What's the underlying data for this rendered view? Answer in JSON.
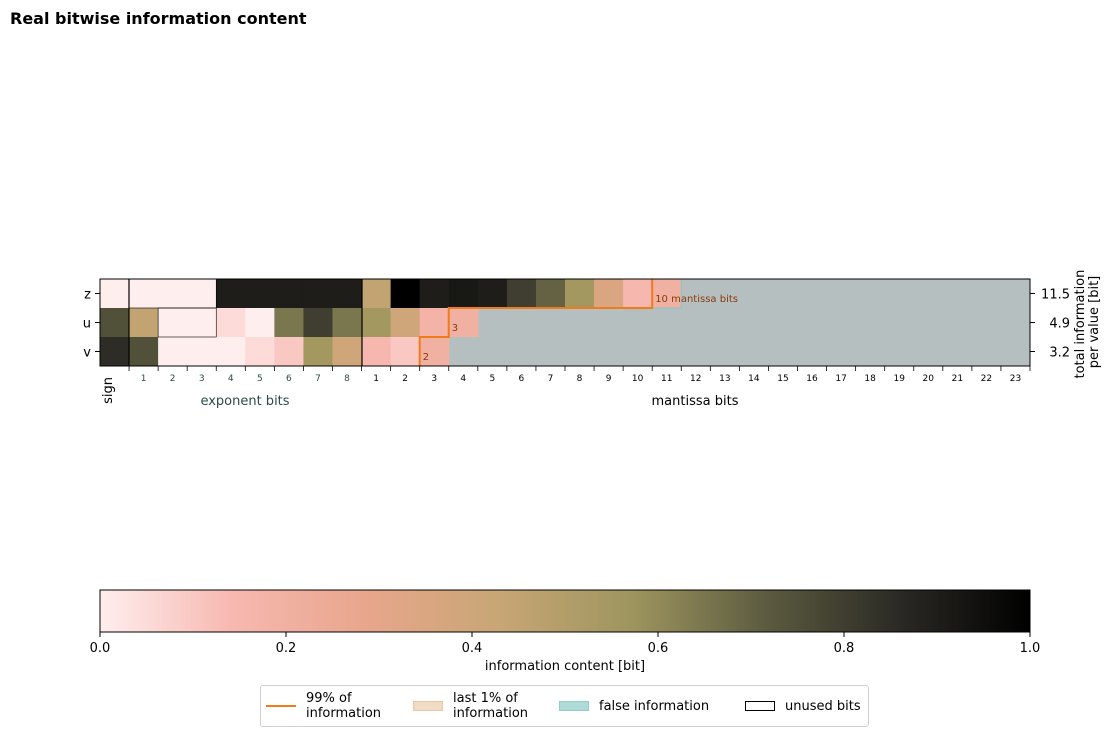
{
  "chart_data": {
    "type": "heatmap",
    "title": "Real bitwise information content",
    "rows": [
      "z",
      "u",
      "v"
    ],
    "row_totals": [
      "11.5",
      "4.9",
      "3.2"
    ],
    "right_label": [
      "total information",
      "per value [bit]"
    ],
    "sign_label": "sign",
    "exponent_label": "exponent bits",
    "mantissa_label": "mantissa bits",
    "exponent_ticks": [
      "1",
      "2",
      "3",
      "4",
      "5",
      "6",
      "7",
      "8"
    ],
    "mantissa_ticks": [
      "1",
      "2",
      "3",
      "4",
      "5",
      "6",
      "7",
      "8",
      "9",
      "10",
      "11",
      "12",
      "13",
      "14",
      "15",
      "16",
      "17",
      "18",
      "19",
      "20",
      "21",
      "22",
      "23"
    ],
    "values": [
      [
        0.0,
        0.0,
        0.0,
        0.0,
        0.9,
        0.9,
        0.9,
        0.9,
        0.9,
        0.45,
        1.0,
        0.9,
        0.92,
        0.9,
        0.8,
        0.7,
        0.55,
        0.35,
        0.15
      ],
      [
        0.75,
        0.45,
        0.0,
        0.0,
        0.05,
        0.0,
        0.65,
        0.8,
        0.65,
        0.55,
        0.4,
        0.18
      ],
      [
        0.85,
        0.75,
        0.0,
        0.0,
        0.0,
        0.05,
        0.1,
        0.55,
        0.4,
        0.15,
        0.1
      ]
    ],
    "false_info_start_bit": [
      20,
      13,
      12
    ],
    "false_info_end_bit": 22,
    "unused_bits": [
      [
        0,
        1,
        4
      ],
      [
        1,
        2,
        4
      ]
    ],
    "keepbits": [
      10,
      3,
      2
    ],
    "keepbits_labels": [
      "10 mantissa bits",
      "3",
      "2"
    ],
    "colorbar": {
      "label": "information content [bit]",
      "ticks": [
        "0.0",
        "0.2",
        "0.4",
        "0.6",
        "0.8",
        "1.0"
      ],
      "range": [
        0.0,
        1.0
      ],
      "colors": [
        "#ffeeee",
        "#f7b8b0",
        "#e8a68c",
        "#c8a675",
        "#9e955e",
        "#5d5c40",
        "#2b2a25",
        "#000000"
      ]
    },
    "false_info_color": "#b6bfbf",
    "legend": [
      {
        "label": "99% of\ninformation",
        "kind": "line",
        "color": "#f07b1a"
      },
      {
        "label": "last 1% of\ninformation",
        "kind": "box",
        "color": "#f0dcc4"
      },
      {
        "label": "false information",
        "kind": "box",
        "color": "#aedbd8"
      },
      {
        "label": "unused bits",
        "kind": "outline",
        "color": "#000000"
      }
    ],
    "accent_color": "#f07b1a",
    "annotation_color": "#8b3a0a"
  }
}
